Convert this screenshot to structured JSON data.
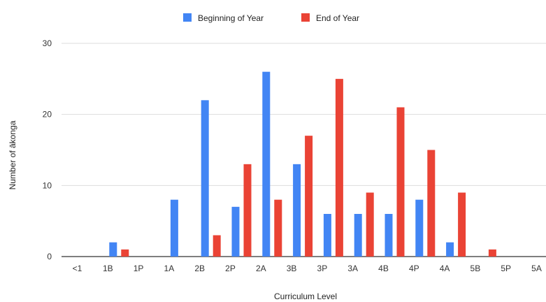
{
  "chart_data": {
    "type": "bar",
    "categories": [
      "<1",
      "1B",
      "1P",
      "1A",
      "2B",
      "2P",
      "2A",
      "3B",
      "3P",
      "3A",
      "4B",
      "4P",
      "4A",
      "5B",
      "5P",
      "5A"
    ],
    "series": [
      {
        "name": "Beginning of Year",
        "color": "#4285F4",
        "values": [
          0,
          2,
          0,
          8,
          22,
          7,
          26,
          13,
          6,
          6,
          6,
          8,
          2,
          0,
          0,
          0
        ]
      },
      {
        "name": "End of Year",
        "color": "#EA4335",
        "values": [
          0,
          1,
          0,
          0,
          3,
          13,
          8,
          17,
          25,
          9,
          21,
          15,
          9,
          1,
          0,
          0
        ]
      }
    ],
    "xlabel": "Curriculum Level",
    "ylabel": "Number of ākonga",
    "ylim": [
      0,
      30
    ],
    "yticks": [
      0,
      10,
      20,
      30
    ],
    "grid": true,
    "legend_position": "top"
  }
}
